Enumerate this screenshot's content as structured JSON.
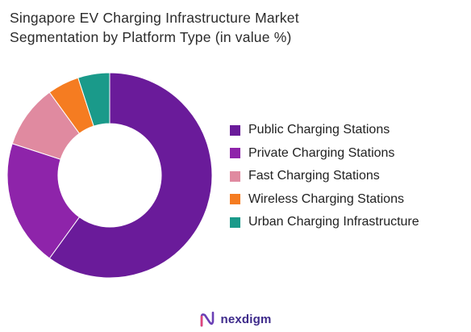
{
  "title_line1": "Singapore EV Charging Infrastructure Market",
  "title_line2": "Segmentation by Platform Type (in value %)",
  "chart_data": {
    "type": "pie",
    "variant": "donut",
    "title": "Singapore EV Charging Infrastructure Market Segmentation by Platform Type (in value %)",
    "categories": [
      "Public Charging Stations",
      "Private Charging Stations",
      "Fast Charging Stations",
      "Wireless Charging Stations",
      "Urban Charging Infrastructure"
    ],
    "values": [
      60,
      20,
      10,
      5,
      5
    ],
    "colors": [
      "#6a1b9a",
      "#8e24aa",
      "#e08aa0",
      "#f57c21",
      "#1a9a8a"
    ],
    "legend_position": "right"
  },
  "legend": {
    "items": [
      "Public Charging Stations",
      "Private Charging Stations",
      "Fast Charging Stations",
      "Wireless Charging Stations",
      "Urban Charging Infrastructure"
    ]
  },
  "footer": {
    "brand": "nexdigm",
    "logo_icon": "nexdigm-logo-icon"
  }
}
